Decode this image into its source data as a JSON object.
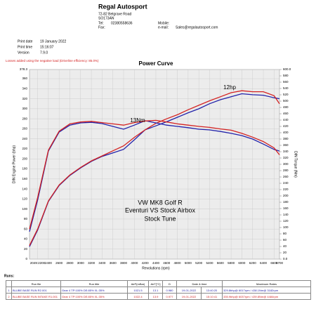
{
  "header": {
    "company": "Regal Autosport",
    "address": [
      "72-82 Belgrave Road",
      "SO173AN"
    ],
    "tel_label": "Tel:",
    "tel": "02380558636",
    "fax_label": "Fax:",
    "mobile_label": "Mobile:",
    "email_label": "e-mail:",
    "email": "Sales@regalautosport.com"
  },
  "print_info": [
    {
      "label": "Print date",
      "value": "19 January 2022"
    },
    {
      "label": "Print time",
      "value": "15:16:07"
    },
    {
      "label": "Version",
      "value": "7.9.0"
    }
  ],
  "chart_data": {
    "type": "line",
    "title": "Power Curve",
    "note": "Losses added using the negative load (Driveline efficiency: 85.0%)",
    "x_label": "Revolutions (rpm)",
    "y_label": "DIN Engine Power (bhp)",
    "y2_label": "DIN Torque (Nm)",
    "annotations": [
      "12hp",
      "13Nm",
      "VW MK8 Golf R",
      "Eventuri VS Stock Airbox",
      "Stock Tune"
    ],
    "x": [
      2049,
      2200,
      2400,
      2600,
      2800,
      3000,
      3200,
      3400,
      3600,
      3800,
      4000,
      4200,
      4400,
      4600,
      4800,
      5000,
      5200,
      5400,
      5600,
      5800,
      6000,
      6200,
      6400,
      6600,
      6700
    ],
    "series": [
      {
        "color": "#2222aa",
        "values": [
          25,
          58,
          115,
          147,
          167,
          182,
          195,
          205,
          212,
          219,
          238,
          258,
          266,
          274,
          283,
          292,
          300,
          310,
          318,
          324,
          330,
          328,
          327,
          322,
          320
        ]
      },
      {
        "color": "#d42222",
        "values": [
          27,
          60,
          116,
          148,
          168,
          183,
          196,
          206,
          216,
          226,
          243,
          258,
          271,
          280,
          288,
          298,
          307,
          316,
          324,
          332,
          336,
          334,
          334,
          326,
          310
        ]
      },
      {
        "color": "#2222aa",
        "axis": "y2",
        "values": [
          87,
          187,
          342,
          402,
          424,
          431,
          433,
          429,
          420,
          411,
          424,
          438,
          431,
          424,
          420,
          416,
          411,
          409,
          404,
          398,
          391,
          380,
          364,
          347,
          342
        ]
      },
      {
        "color": "#d42222",
        "axis": "y2",
        "values": [
          95,
          195,
          345,
          405,
          428,
          434,
          436,
          432,
          428,
          424,
          432,
          437,
          439,
          434,
          428,
          424,
          420,
          417,
          412,
          408,
          398,
          386,
          372,
          352,
          330
        ]
      }
    ],
    "xlim": [
      2049,
      6700
    ],
    "xticks": [
      {
        "value": 2200,
        "label": "2049:2200"
      },
      2400,
      2600,
      2800,
      3000,
      3200,
      3400,
      3600,
      3800,
      4000,
      4200,
      4400,
      4600,
      4800,
      5000,
      5200,
      5400,
      5600,
      5800,
      6000,
      6200,
      6400,
      6600,
      6700
    ],
    "ylim": [
      0,
      378.3
    ],
    "yticks": [
      0,
      20,
      40,
      60,
      80,
      100,
      120,
      140,
      160,
      180,
      200,
      220,
      240,
      260,
      280,
      300,
      320,
      340,
      360,
      378.3
    ],
    "y2lim": [
      0,
      600
    ],
    "y2ticks": [
      {
        "value": 0,
        "label": "0.0"
      },
      20,
      40,
      60,
      80,
      100,
      120,
      140,
      160,
      180,
      200,
      220,
      240,
      260,
      280,
      300,
      320,
      340,
      360,
      380,
      400,
      420,
      440,
      460,
      480,
      500,
      520,
      540,
      560,
      580,
      {
        "value": 600,
        "label": "600.0"
      }
    ],
    "grid": true
  },
  "runs_table": {
    "label": "Runs:",
    "columns": [
      "Run file",
      "Run title",
      "AirP(mBar)",
      "AirT[°C]",
      "D",
      "Date & time",
      "Maximum Rates"
    ],
    "rows": [
      [
        "1",
        "BLUBE BASE RUN R2.001",
        "Gear 4 TP:100% DE:85% XL:35%",
        "1021.5",
        "13.1",
        "0.980",
        "19-01-2022",
        "13:40:20",
        "329.8bhp@ 6017rpm / 438.1Nm@ 3182rpm"
      ],
      [
        "2",
        "BLUBE BASE RUN INTAKE R1.001",
        "Gear 4 TP:100% DE:85% XL:35%",
        "1022.4",
        "13.9",
        "0.977",
        "19-01-2022",
        "15:10:41",
        "335.9bhp@ 6037rpm / 439.8Nm@ 4484rpm"
      ]
    ]
  }
}
